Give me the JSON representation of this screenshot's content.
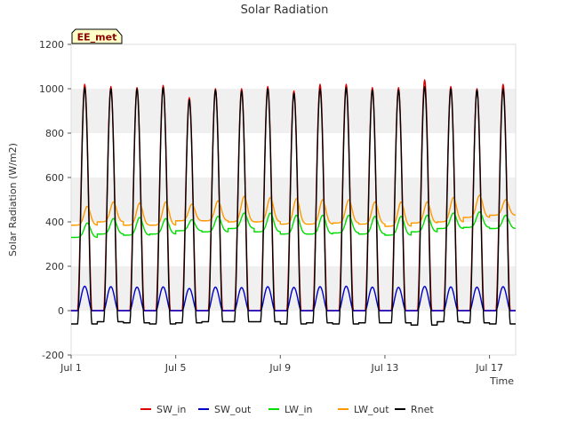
{
  "chart_data": {
    "type": "line",
    "title": "Solar Radiation",
    "xlabel": "Time",
    "ylabel": "Solar Radiation (W/m2)",
    "badge": "EE_met",
    "xlim": [
      1.0,
      18.0
    ],
    "ylim": [
      -200,
      1200
    ],
    "x_ticks": [
      {
        "value": 1,
        "label": "Jul 1"
      },
      {
        "value": 5,
        "label": "Jul 5"
      },
      {
        "value": 9,
        "label": "Jul 9"
      },
      {
        "value": 13,
        "label": "Jul 13"
      },
      {
        "value": 17,
        "label": "Jul 17"
      }
    ],
    "y_ticks": [
      -200,
      0,
      200,
      400,
      600,
      800,
      1000,
      1200
    ],
    "grid": true,
    "legend_position": "bottom",
    "days": [
      1,
      2,
      3,
      4,
      5,
      6,
      7,
      8,
      9,
      10,
      11,
      12,
      13,
      14,
      15,
      16,
      17
    ],
    "series": [
      {
        "name": "SW_in",
        "color": "#dd0000",
        "night": [
          0,
          0,
          0,
          0,
          0,
          0,
          0,
          0,
          0,
          0,
          0,
          0,
          0,
          0,
          0,
          0,
          0
        ],
        "peak": [
          1020,
          1010,
          1005,
          1015,
          960,
          1000,
          1000,
          1010,
          990,
          1020,
          1020,
          1005,
          1005,
          1040,
          1010,
          1000,
          1020
        ]
      },
      {
        "name": "SW_out",
        "color": "#0000cc",
        "night": [
          0,
          0,
          0,
          0,
          0,
          0,
          0,
          0,
          0,
          0,
          0,
          0,
          0,
          0,
          0,
          0,
          0
        ],
        "peak": [
          110,
          108,
          106,
          107,
          100,
          106,
          104,
          108,
          105,
          108,
          110,
          106,
          105,
          109,
          107,
          106,
          108
        ]
      },
      {
        "name": "LW_in",
        "color": "#00dd00",
        "night": [
          330,
          345,
          340,
          345,
          360,
          355,
          370,
          355,
          345,
          345,
          350,
          345,
          340,
          355,
          370,
          375,
          370
        ],
        "peak": [
          395,
          415,
          420,
          415,
          410,
          425,
          440,
          440,
          430,
          430,
          430,
          425,
          425,
          430,
          440,
          445,
          430
        ]
      },
      {
        "name": "LW_out",
        "color": "#ff9900",
        "night": [
          385,
          400,
          385,
          385,
          405,
          405,
          400,
          400,
          390,
          390,
          395,
          390,
          380,
          395,
          400,
          420,
          430
        ],
        "peak": [
          470,
          490,
          485,
          490,
          480,
          495,
          515,
          510,
          505,
          500,
          500,
          490,
          490,
          490,
          510,
          520,
          500
        ]
      },
      {
        "name": "Rnet",
        "color": "#000000",
        "night": [
          -60,
          -50,
          -55,
          -60,
          -55,
          -50,
          -50,
          -50,
          -60,
          -55,
          -60,
          -55,
          -55,
          -65,
          -50,
          -55,
          -60
        ],
        "peak": [
          1005,
          1000,
          1000,
          1005,
          950,
          995,
          990,
          1000,
          980,
          1000,
          1005,
          995,
          995,
          1010,
          1000,
          995,
          1000
        ]
      }
    ]
  }
}
